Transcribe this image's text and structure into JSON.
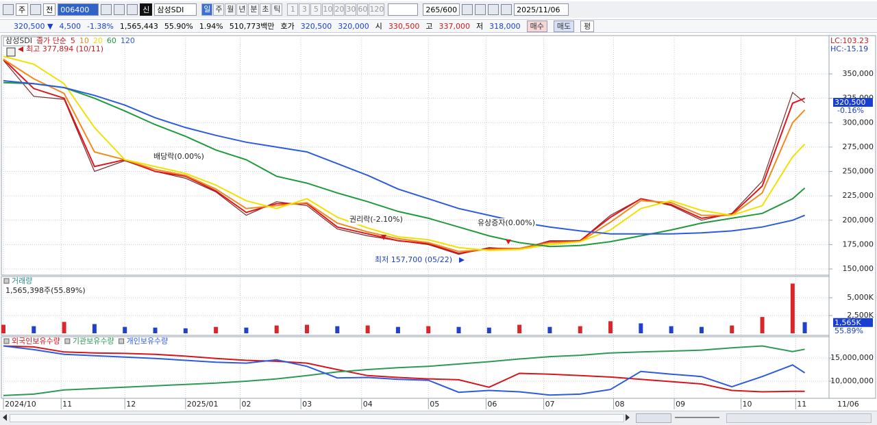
{
  "toolbar": {
    "market": "주",
    "compare": "전",
    "code": "006400",
    "badge": "신",
    "name": "삼성SDI",
    "intervals": [
      "일",
      "주",
      "월",
      "년",
      "분",
      "초",
      "틱"
    ],
    "counts": [
      "1",
      "3",
      "5",
      "10",
      "20",
      "30",
      "60",
      "120"
    ],
    "range": "265/600",
    "date": "2025/11/06"
  },
  "quote": [
    {
      "text": "320,500 ▼",
      "color": "#1a3fd0"
    },
    {
      "text": "4,500",
      "color": "#1a3fd0"
    },
    {
      "text": "-1.38%",
      "color": "#1a3fd0"
    },
    {
      "text": "1,565,443",
      "color": "#000000"
    },
    {
      "text": "55.90%",
      "color": "#000000"
    },
    {
      "text": "1.94%",
      "color": "#000000"
    },
    {
      "text": "510,773백만",
      "color": "#000000"
    },
    {
      "text": "호가",
      "color": "#000000"
    },
    {
      "text": "320,500",
      "color": "#1a3fd0"
    },
    {
      "text": "320,000",
      "color": "#1a3fd0"
    },
    {
      "text": "시",
      "color": "#000000"
    },
    {
      "text": "330,500",
      "color": "#d01a1a"
    },
    {
      "text": "고",
      "color": "#000000"
    },
    {
      "text": "337,000",
      "color": "#d01a1a"
    },
    {
      "text": "저",
      "color": "#000000"
    },
    {
      "text": "318,000",
      "color": "#1a3fd0"
    }
  ],
  "buttons": [
    {
      "text": "매수",
      "color": "#f6d6d6"
    },
    {
      "text": "매도",
      "color": "#d6e0f6"
    },
    {
      "text": "평",
      "color": "#ffffff"
    }
  ],
  "chart_data": [
    {
      "type": "line",
      "legend_label": "종가 단순",
      "x": [
        0,
        10,
        20,
        30,
        40,
        50,
        60,
        70,
        80,
        90,
        100,
        110,
        120,
        130,
        140,
        150,
        160,
        170,
        180,
        190,
        200,
        210,
        220,
        230,
        240,
        250,
        260,
        264
      ],
      "xlim": [
        0,
        265
      ],
      "ylim": [
        143700,
        387200
      ],
      "yticks": [
        {
          "value": 150000,
          "label": "150,000"
        },
        {
          "value": 175000,
          "label": "175,000"
        },
        {
          "value": 200000,
          "label": "200,000"
        },
        {
          "value": 225000,
          "label": "225,000"
        },
        {
          "value": 250000,
          "label": "250,000"
        },
        {
          "value": 275000,
          "label": "275,000"
        },
        {
          "value": 300000,
          "label": "300,000"
        },
        {
          "value": 325000,
          "label": "325,000"
        },
        {
          "value": 350000,
          "label": "350,000"
        }
      ],
      "series": [
        {
          "name": "삼성SDI",
          "color": "#7a2a2a",
          "values": [
            364000,
            327000,
            324000,
            250000,
            261000,
            250000,
            243000,
            229000,
            205000,
            219000,
            215000,
            191000,
            184000,
            179000,
            175000,
            165000,
            172000,
            170000,
            179000,
            179000,
            205000,
            222000,
            215000,
            200000,
            207000,
            240000,
            331000,
            320500
          ]
        },
        {
          "name": "5",
          "color": "#e0151b",
          "values": [
            365000,
            335000,
            325000,
            255000,
            262000,
            250000,
            245000,
            230000,
            208000,
            217000,
            217000,
            193000,
            186000,
            179000,
            176000,
            166000,
            171000,
            171000,
            178000,
            179000,
            203000,
            222000,
            216000,
            202000,
            206000,
            235000,
            320000,
            325000
          ]
        },
        {
          "name": "10",
          "color": "#f08a1c",
          "values": [
            365000,
            345000,
            330000,
            270000,
            262000,
            252000,
            246000,
            232000,
            212000,
            215000,
            218000,
            197000,
            188000,
            181000,
            177000,
            168000,
            170000,
            171000,
            177000,
            178000,
            198000,
            220000,
            218000,
            205000,
            205000,
            228000,
            300000,
            313000
          ]
        },
        {
          "name": "20",
          "color": "#f2e000",
          "values": [
            368000,
            360000,
            340000,
            295000,
            262000,
            255000,
            248000,
            236000,
            220000,
            212000,
            222000,
            203000,
            192000,
            183000,
            180000,
            172000,
            169000,
            170000,
            175000,
            178000,
            190000,
            212000,
            220000,
            210000,
            205000,
            215000,
            265000,
            278000
          ]
        },
        {
          "name": "60",
          "color": "#1f9a3a",
          "values": [
            341000,
            340000,
            336000,
            325000,
            312000,
            298000,
            286000,
            272000,
            262000,
            245000,
            238000,
            228000,
            219000,
            209000,
            202000,
            193000,
            184000,
            177000,
            173000,
            174000,
            178000,
            184000,
            190000,
            197000,
            202000,
            207000,
            222000,
            233000
          ]
        },
        {
          "name": "120",
          "color": "#2c5ae0",
          "values": [
            343000,
            340000,
            336000,
            328000,
            318000,
            305000,
            295000,
            287000,
            280000,
            275000,
            270000,
            258000,
            246000,
            232000,
            222000,
            212000,
            205000,
            198000,
            193000,
            189000,
            186000,
            186000,
            186000,
            187000,
            189000,
            193000,
            200000,
            205000
          ]
        }
      ],
      "annotations": [
        "최고 377,894 (10/11)",
        "배당락(0.00%)",
        "권리락(-2.10%)",
        "유상증자(0.00%)",
        "최저 157,700 (05/22)"
      ],
      "side_labels": [
        {
          "text": "LC:103.23",
          "color": "#d01a1a"
        },
        {
          "text": "HC:-15.19",
          "color": "#1a3fd0"
        }
      ],
      "current_label": "320,500",
      "change_label": "-0.16%"
    },
    {
      "type": "bar",
      "title": "거래량",
      "subtitle": "1,565,398주(55.89%)",
      "color": "#d8262b",
      "down_color": "#2340c8",
      "x": [
        0,
        10,
        20,
        30,
        40,
        50,
        60,
        70,
        80,
        90,
        100,
        110,
        120,
        130,
        140,
        150,
        160,
        170,
        180,
        190,
        200,
        210,
        220,
        230,
        240,
        250,
        260,
        264
      ],
      "values": [
        1200000,
        1000000,
        1600000,
        1300000,
        900000,
        800000,
        700000,
        900000,
        800000,
        1100000,
        1200000,
        1000000,
        1100000,
        900000,
        1000000,
        900000,
        800000,
        1200000,
        900000,
        1000000,
        1700000,
        1400000,
        1000000,
        900000,
        1100000,
        2300000,
        7000000,
        1565398
      ],
      "xlim": [
        0,
        265
      ],
      "ylim": [
        0,
        7900000
      ],
      "yticks": [
        {
          "value": 2500000,
          "label": "2,500K"
        },
        {
          "value": 5000000,
          "label": "5,000K"
        }
      ],
      "current_label": "1,565K",
      "ratio_label": "55.89%"
    },
    {
      "type": "line",
      "x": [
        0,
        10,
        20,
        30,
        40,
        50,
        60,
        70,
        80,
        90,
        100,
        110,
        120,
        130,
        140,
        150,
        160,
        170,
        180,
        190,
        200,
        210,
        220,
        230,
        240,
        250,
        260,
        264
      ],
      "xlim": [
        0,
        265
      ],
      "ylim": [
        6300000,
        19600000
      ],
      "yticks": [
        {
          "value": 10000000,
          "label": "10,000,000"
        },
        {
          "value": 15000000,
          "label": "15,000,000"
        }
      ],
      "xticks": [
        {
          "value": 0,
          "label": "2024/10"
        },
        {
          "value": 19,
          "label": "11"
        },
        {
          "value": 40,
          "label": "12"
        },
        {
          "value": 60,
          "label": "2025/01"
        },
        {
          "value": 78,
          "label": "02"
        },
        {
          "value": 98,
          "label": "03"
        },
        {
          "value": 118,
          "label": "04"
        },
        {
          "value": 140,
          "label": "05"
        },
        {
          "value": 159,
          "label": "06"
        },
        {
          "value": 178,
          "label": "07"
        },
        {
          "value": 201,
          "label": "08"
        },
        {
          "value": 221,
          "label": "09"
        },
        {
          "value": 243,
          "label": "10"
        },
        {
          "value": 261,
          "label": "11"
        }
      ],
      "end_label": "11/06",
      "series": [
        {
          "name": "외국인보유수량",
          "color": "#d8141b",
          "values": [
            17600000,
            17400000,
            16300000,
            16100000,
            16000000,
            15800000,
            15400000,
            14900000,
            14500000,
            14300000,
            13900000,
            12500000,
            11200000,
            10800000,
            10500000,
            10300000,
            8700000,
            11700000,
            11500000,
            11200000,
            10900000,
            10400000,
            9900000,
            9400000,
            8000000,
            7700000,
            7800000,
            7800000
          ]
        },
        {
          "name": "기관보유수량",
          "color": "#2a9a55",
          "values": [
            6900000,
            7200000,
            8100000,
            8400000,
            8700000,
            9000000,
            9300000,
            9600000,
            10000000,
            10500000,
            11200000,
            12000000,
            12500000,
            12900000,
            13200000,
            13700000,
            14200000,
            14800000,
            15300000,
            15600000,
            16100000,
            16300000,
            16500000,
            16700000,
            17200000,
            17600000,
            16400000,
            16900000
          ]
        },
        {
          "name": "개인보유수량",
          "color": "#2c5ae0",
          "values": [
            17600000,
            16800000,
            15800000,
            15500000,
            15200000,
            14900000,
            14500000,
            14100000,
            13900000,
            14600000,
            13200000,
            10700000,
            10800000,
            10400000,
            10200000,
            7600000,
            8000000,
            7700000,
            7000000,
            7200000,
            8200000,
            12100000,
            11500000,
            11000000,
            8800000,
            11000000,
            13500000,
            11800000
          ]
        }
      ]
    }
  ]
}
